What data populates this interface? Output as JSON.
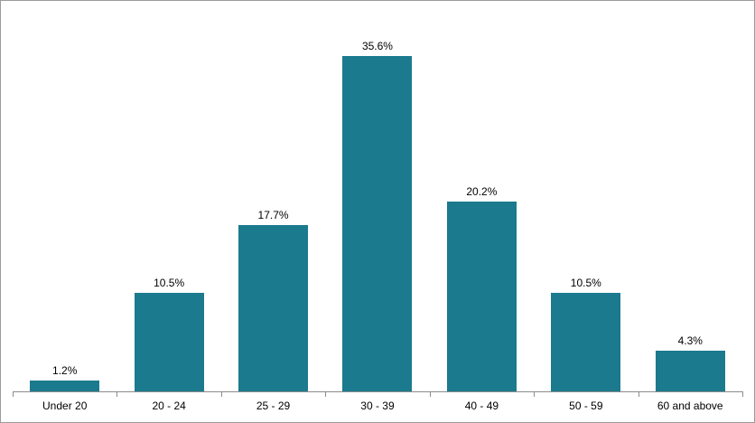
{
  "chart_data": {
    "type": "bar",
    "categories": [
      "Under 20",
      "20 - 24",
      "25 - 29",
      "30 - 39",
      "40 - 49",
      "50 - 59",
      "60 and above"
    ],
    "values": [
      1.2,
      10.5,
      17.7,
      35.6,
      20.2,
      10.5,
      4.3
    ],
    "data_labels": [
      "1.2%",
      "10.5%",
      "17.7%",
      "35.6%",
      "20.2%",
      "10.5%",
      "4.3%"
    ],
    "title": "",
    "xlabel": "",
    "ylabel": "",
    "ylim": [
      0,
      40
    ],
    "grid": false,
    "legend": false,
    "colors": {
      "bar": "#1b7a8d",
      "axis": "#8c8c8c",
      "label_text": "#000000",
      "frame_border": "#9b9b9b",
      "background": "#ffffff"
    }
  }
}
